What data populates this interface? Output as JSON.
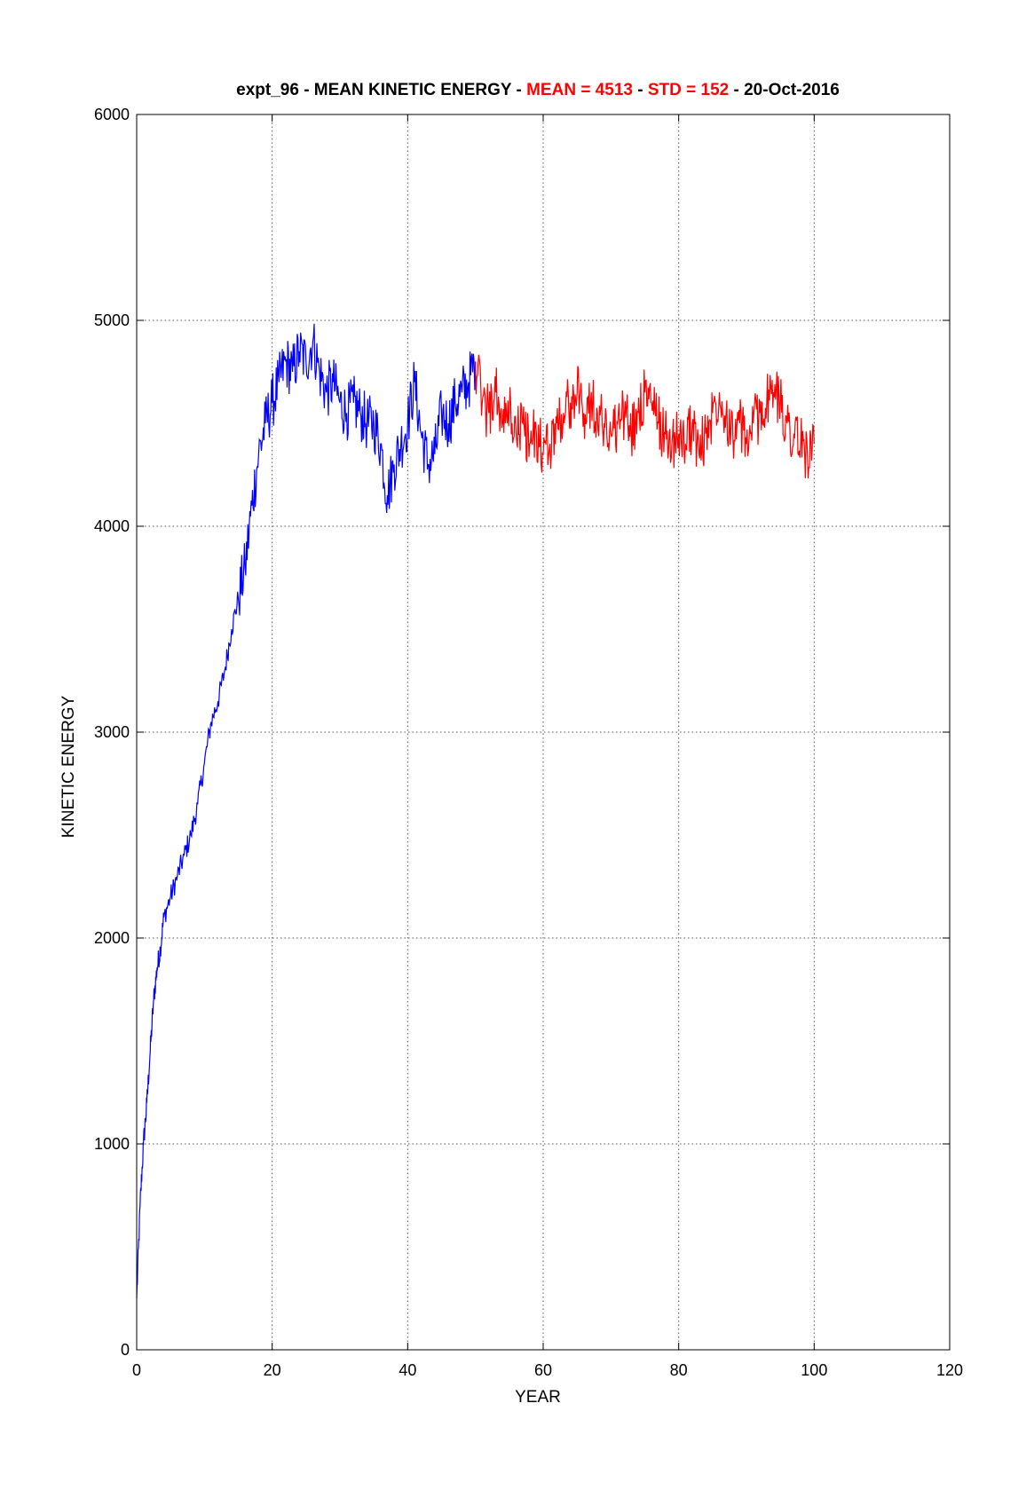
{
  "chart_data": {
    "type": "line",
    "title": {
      "prefix": "expt_96 - MEAN KINETIC ENERGY - ",
      "mean_text": "MEAN =  4513",
      "sep1": " - ",
      "std_text": "STD =  152",
      "suffix": " - 20-Oct-2016"
    },
    "xlabel": "YEAR",
    "ylabel": "KINETIC ENERGY",
    "xlim": [
      0,
      120
    ],
    "ylim": [
      0,
      6000
    ],
    "xticks": [
      0,
      20,
      40,
      60,
      80,
      100,
      120
    ],
    "yticks": [
      0,
      1000,
      2000,
      3000,
      4000,
      5000,
      6000
    ],
    "grid": true,
    "stats": {
      "mean": 4513,
      "std": 152
    },
    "colors": {
      "spinup": "#0000ff",
      "analysis": "#ff0000",
      "stat_text": "#ff0000",
      "grid": "#555555"
    },
    "series": [
      {
        "color": "#0000ff",
        "x": [
          0,
          0.5,
          1,
          1.5,
          2,
          2.5,
          3,
          3.5,
          4,
          5,
          6,
          7,
          8,
          9,
          10,
          11,
          12,
          13,
          14,
          15,
          16,
          17,
          18,
          19,
          20,
          21,
          22,
          23,
          24,
          25,
          26,
          27,
          28,
          29,
          30,
          31,
          32,
          33,
          34,
          35,
          36,
          37,
          38,
          39,
          40,
          41,
          42,
          43,
          44,
          45,
          46,
          47,
          48,
          49,
          50
        ],
        "y": [
          250,
          700,
          1000,
          1200,
          1450,
          1700,
          1850,
          1950,
          2100,
          2200,
          2300,
          2400,
          2500,
          2650,
          2850,
          3050,
          3150,
          3300,
          3500,
          3650,
          3800,
          4100,
          4350,
          4500,
          4600,
          4700,
          4800,
          4750,
          4850,
          4800,
          4900,
          4750,
          4650,
          4700,
          4600,
          4550,
          4600,
          4550,
          4500,
          4500,
          4400,
          4150,
          4300,
          4400,
          4500,
          4700,
          4450,
          4300,
          4350,
          4550,
          4500,
          4600,
          4650,
          4700,
          4800
        ]
      },
      {
        "color": "#ff0000",
        "x": [
          50,
          51,
          52,
          53,
          54,
          55,
          56,
          57,
          58,
          59,
          60,
          61,
          62,
          63,
          64,
          65,
          66,
          67,
          68,
          69,
          70,
          71,
          72,
          73,
          74,
          75,
          76,
          77,
          78,
          79,
          80,
          81,
          82,
          83,
          84,
          85,
          86,
          87,
          88,
          89,
          90,
          91,
          92,
          93,
          94,
          95,
          96,
          97,
          98,
          99,
          100
        ],
        "y": [
          4800,
          4600,
          4550,
          4650,
          4500,
          4550,
          4450,
          4500,
          4400,
          4450,
          4350,
          4400,
          4500,
          4550,
          4600,
          4650,
          4550,
          4600,
          4550,
          4500,
          4450,
          4500,
          4550,
          4450,
          4550,
          4650,
          4600,
          4500,
          4450,
          4400,
          4450,
          4400,
          4500,
          4350,
          4450,
          4550,
          4650,
          4550,
          4450,
          4500,
          4400,
          4500,
          4550,
          4600,
          4650,
          4600,
          4500,
          4450,
          4400,
          4350,
          4400
        ]
      }
    ]
  }
}
